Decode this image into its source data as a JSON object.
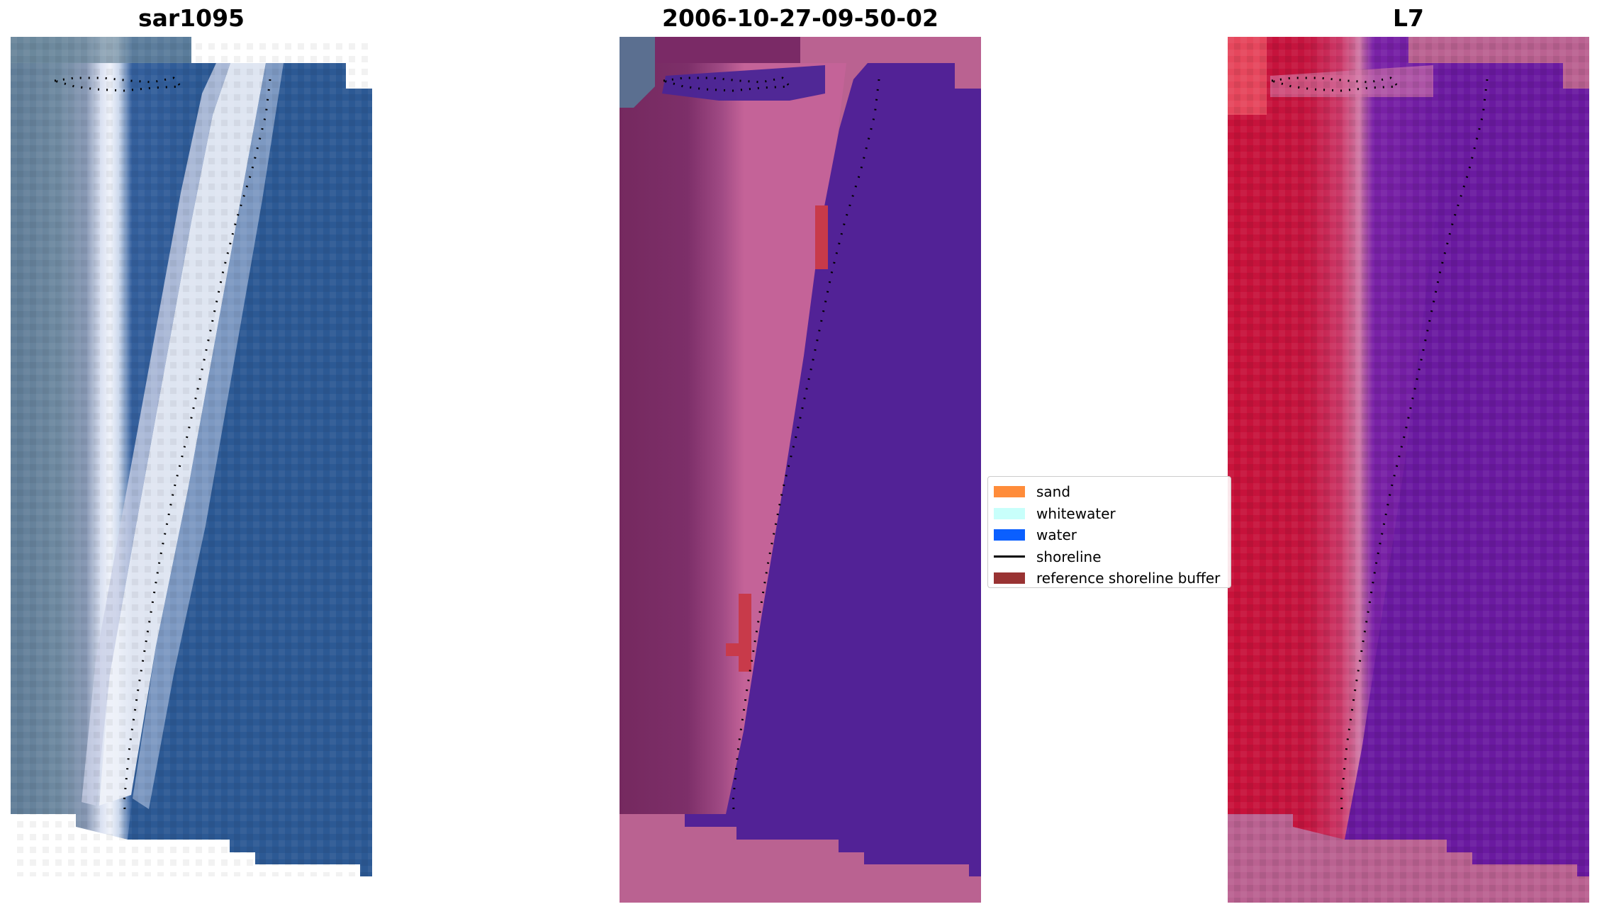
{
  "panels": {
    "left": {
      "title": "sar1095"
    },
    "center": {
      "title": "2006-10-27-09-50-02"
    },
    "right": {
      "title": "L7"
    }
  },
  "legend": {
    "items": [
      {
        "label": "sand",
        "color": "#ff8c3a",
        "kind": "patch"
      },
      {
        "label": "whitewater",
        "color": "#c8fffb",
        "kind": "patch"
      },
      {
        "label": "water",
        "color": "#0a5fff",
        "kind": "patch"
      },
      {
        "label": "shoreline",
        "color": "#000000",
        "kind": "line"
      },
      {
        "label": "reference shoreline buffer",
        "color": "#993333",
        "kind": "patch"
      }
    ]
  },
  "colors": {
    "rgb_land": "#587a96",
    "rgb_water": "#2b5a96",
    "rgb_whitewater": "#e8ecf4",
    "class_land": "#7a2a66",
    "class_sand_tint": "#b85a94",
    "class_water": "#522296",
    "class_buffer_red": "#c83a4a",
    "class_nodata": "#ba6291",
    "ndwi_land": "#c8103a",
    "ndwi_water": "#6a1aa0",
    "ndwi_transition": "#d06a9a"
  }
}
